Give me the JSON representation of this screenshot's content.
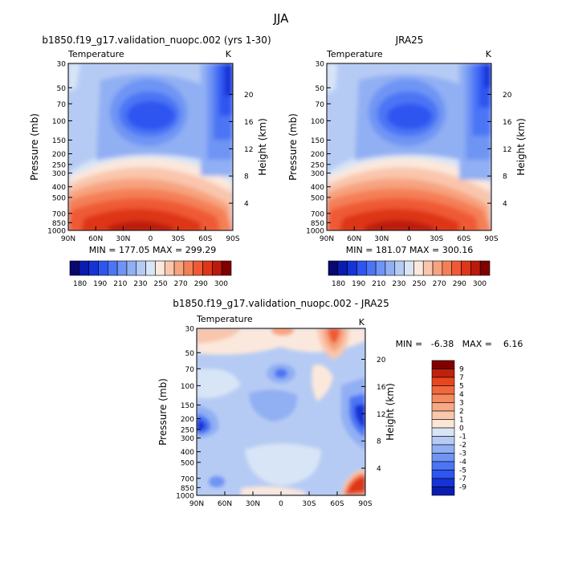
{
  "figure_title": "JJA",
  "chart_data": [
    {
      "type": "heatmap",
      "title": "b1850.f19_g17.validation_nuopc.002 (yrs 1-30)",
      "subtitle_left": "Temperature",
      "units": "K",
      "ylabel": "Pressure (mb)",
      "ylabel_right": "Height (km)",
      "x_ticks": [
        "90N",
        "60N",
        "30N",
        "0",
        "30S",
        "60S",
        "90S"
      ],
      "y_ticks": [
        "30",
        "50",
        "70",
        "100",
        "150",
        "200",
        "250",
        "300",
        "400",
        "500",
        "700",
        "850",
        "1000"
      ],
      "height_ticks": [
        "20",
        "16",
        "12",
        "8",
        "4"
      ],
      "stats_text": "MIN = 177.05   MAX = 299.29",
      "min": 177.05,
      "max": 299.29
    },
    {
      "type": "heatmap",
      "title": "JRA25",
      "subtitle_left": "Temperature",
      "units": "K",
      "ylabel": "Pressure (mb)",
      "ylabel_right": "Height (km)",
      "x_ticks": [
        "90N",
        "60N",
        "30N",
        "0",
        "30S",
        "60S",
        "90S"
      ],
      "y_ticks": [
        "30",
        "50",
        "70",
        "100",
        "150",
        "200",
        "250",
        "300",
        "400",
        "500",
        "700",
        "850",
        "1000"
      ],
      "height_ticks": [
        "20",
        "16",
        "12",
        "8",
        "4"
      ],
      "stats_text": "MIN = 181.07   MAX = 300.16",
      "min": 181.07,
      "max": 300.16
    },
    {
      "type": "heatmap",
      "title": "b1850.f19_g17.validation_nuopc.002 - JRA25",
      "subtitle_left": "Temperature",
      "units": "K",
      "ylabel": "Pressure (mb)",
      "ylabel_right": "Height (km)",
      "x_ticks": [
        "90N",
        "60N",
        "30N",
        "0",
        "30S",
        "60S",
        "90S"
      ],
      "y_ticks": [
        "30",
        "50",
        "70",
        "100",
        "150",
        "200",
        "250",
        "300",
        "400",
        "500",
        "700",
        "850",
        "1000"
      ],
      "height_ticks": [
        "20",
        "16",
        "12",
        "8",
        "4"
      ],
      "stats_text": "MIN =   -6.38   MAX =    6.16",
      "min": -6.38,
      "max": 6.16
    }
  ],
  "colorbar_abs": {
    "labels": [
      "180",
      "190",
      "210",
      "230",
      "250",
      "270",
      "290",
      "300"
    ],
    "colors": [
      "#08086e",
      "#0a1db0",
      "#1533d6",
      "#2e55f0",
      "#4c75f5",
      "#6e94f4",
      "#91aff3",
      "#b6cbf4",
      "#d8e5f6",
      "#fbe8dc",
      "#f9c6ad",
      "#f7a37f",
      "#f47f57",
      "#ef5a35",
      "#dd3618",
      "#bb1a0b",
      "#800000"
    ]
  },
  "colorbar_diff": {
    "labels": [
      "9",
      "7",
      "5",
      "4",
      "3",
      "2",
      "1",
      "0",
      "-1",
      "-2",
      "-3",
      "-4",
      "-5",
      "-7",
      "-9"
    ],
    "colors": [
      "#800000",
      "#c0200c",
      "#e8461e",
      "#f2683e",
      "#f58a60",
      "#f7a886",
      "#f9c7ab",
      "#fbe6d9",
      "#d8e5f6",
      "#b6cbf4",
      "#91aff3",
      "#6e94f4",
      "#4c75f5",
      "#2e55f0",
      "#1533d6",
      "#0a1db0"
    ]
  }
}
